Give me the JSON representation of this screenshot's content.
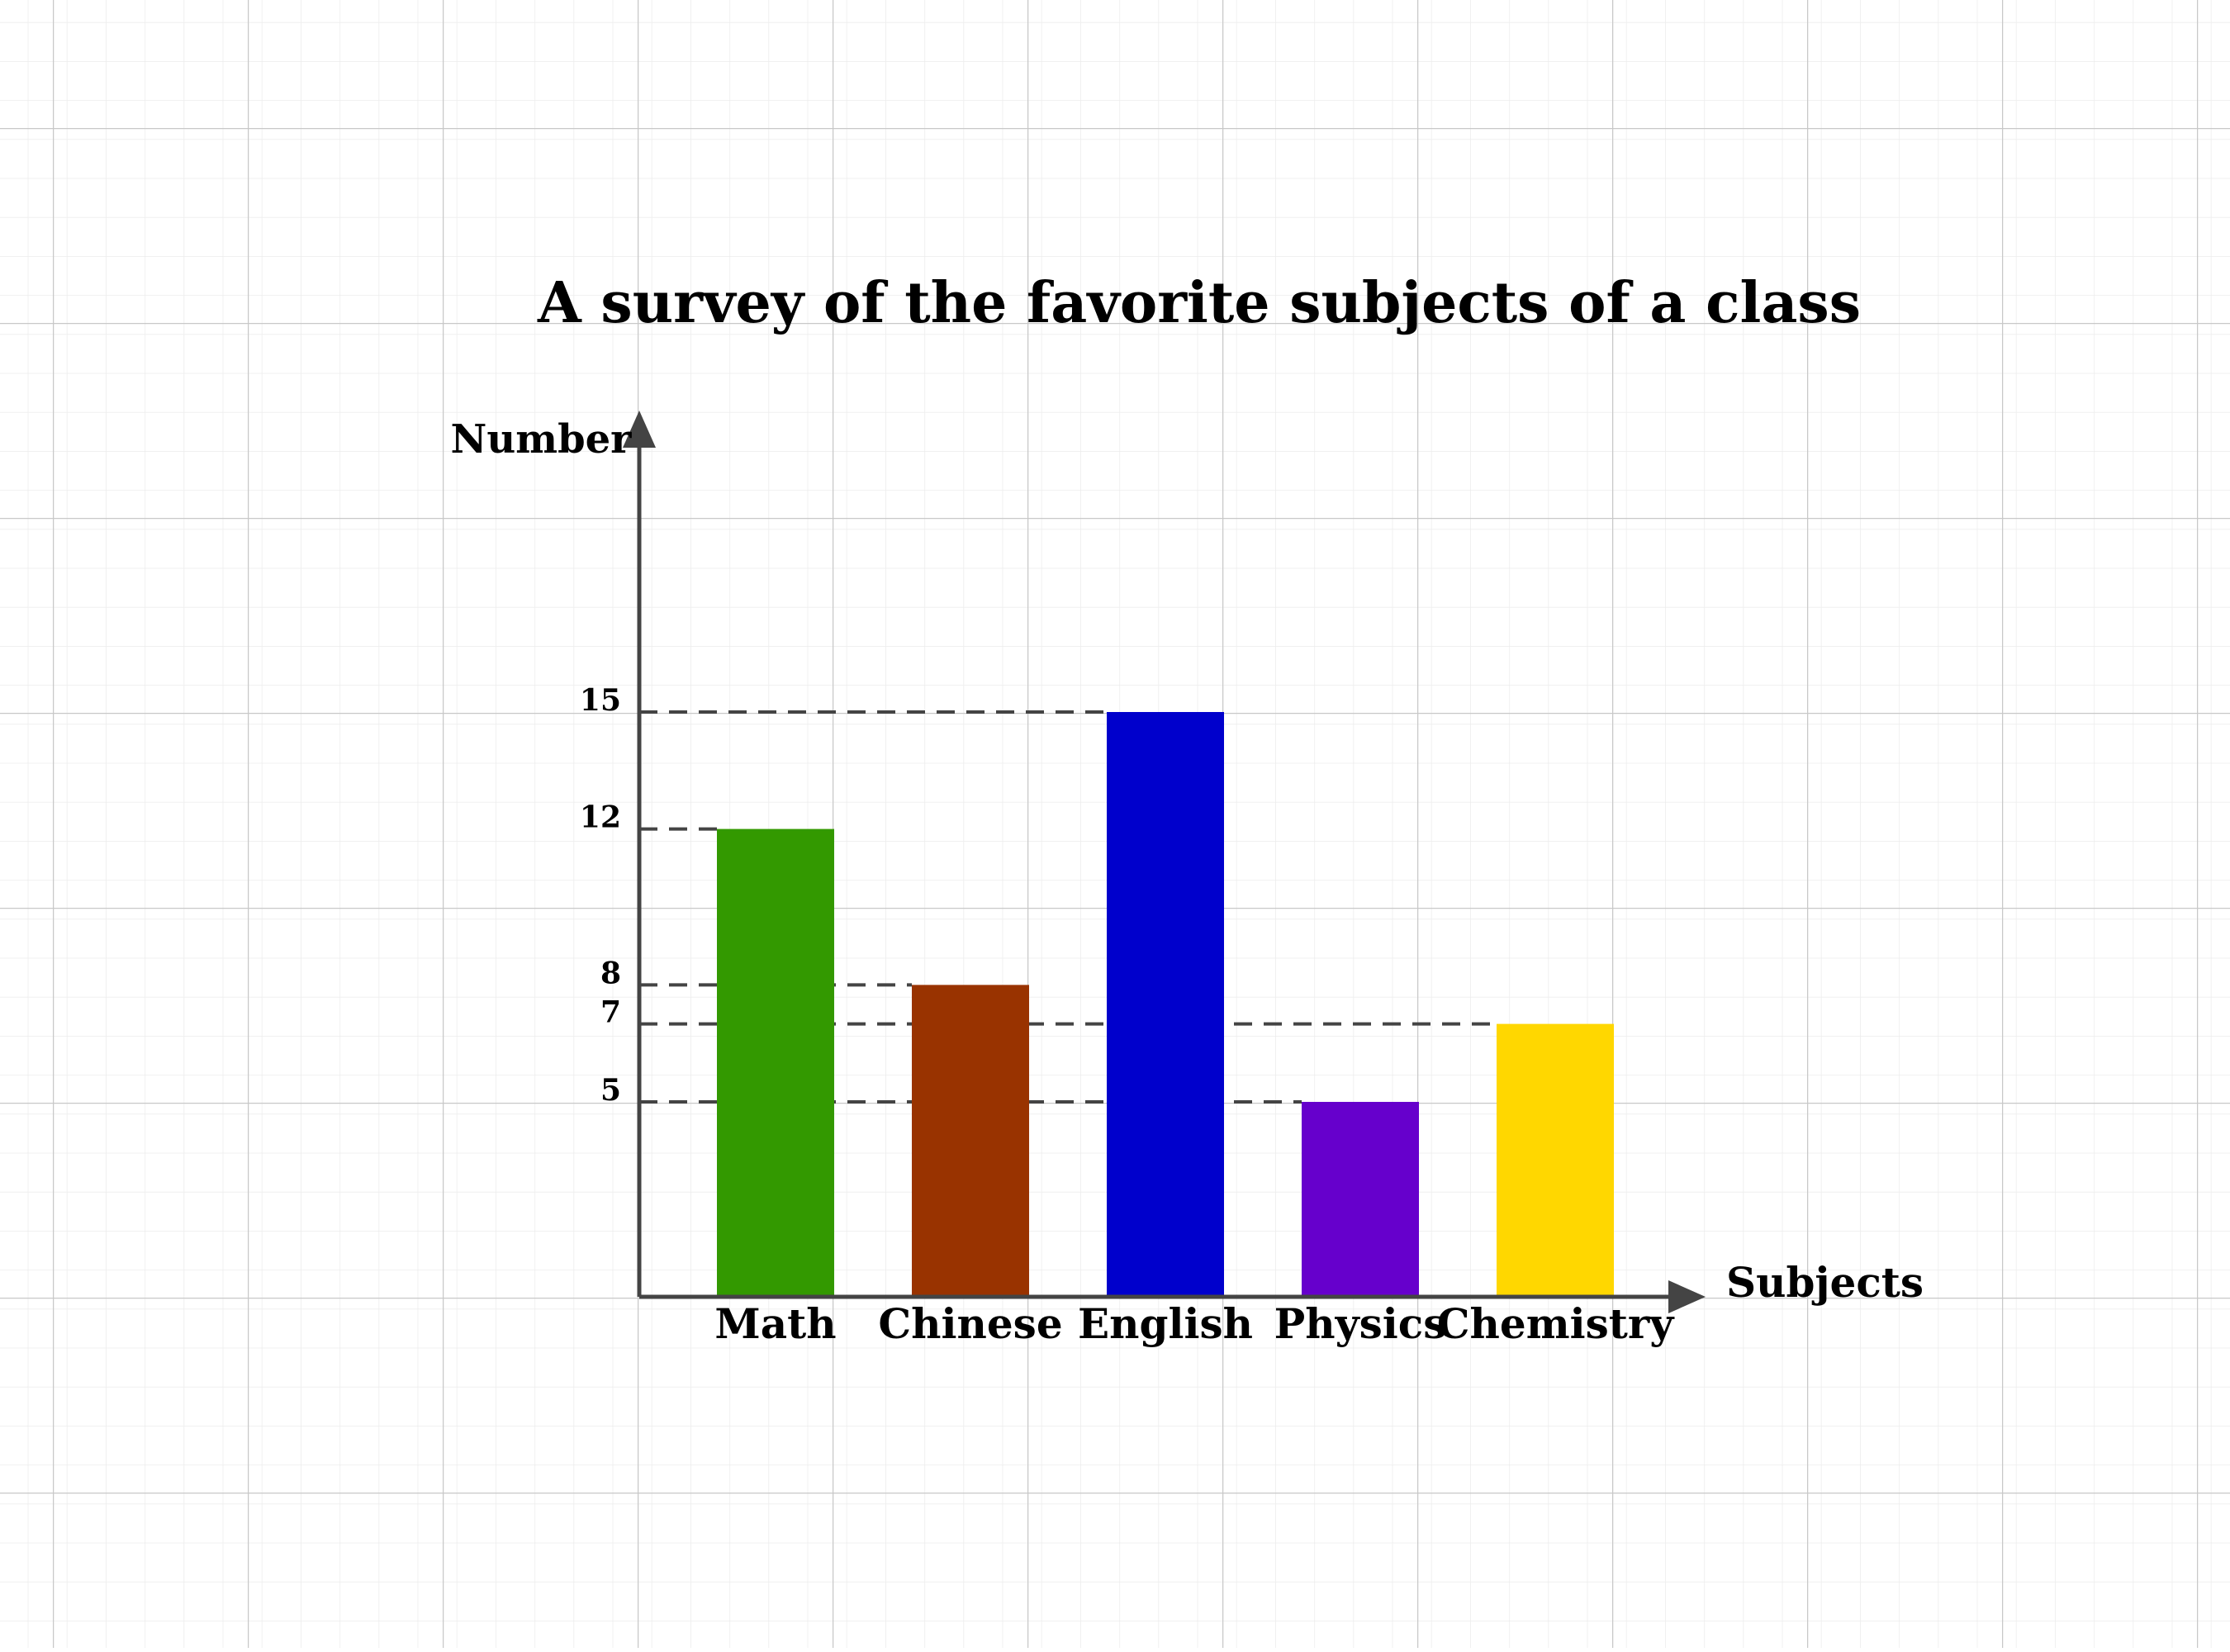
{
  "chart_data": {
    "type": "bar",
    "title": "A survey of the favorite subjects of a class",
    "xlabel": "Subjects",
    "ylabel": "Number",
    "categories": [
      "Math",
      "Chinese",
      "English",
      "Physics",
      "Chemistry"
    ],
    "values": [
      12,
      8,
      15,
      5,
      7
    ],
    "colors": [
      "#339900",
      "#993300",
      "#0000CC",
      "#6600CC",
      "#FFD700"
    ],
    "yticks": [
      5,
      7,
      8,
      12,
      15
    ],
    "ylim": [
      0,
      18
    ],
    "grid": true,
    "reference_lines": "dashed"
  }
}
